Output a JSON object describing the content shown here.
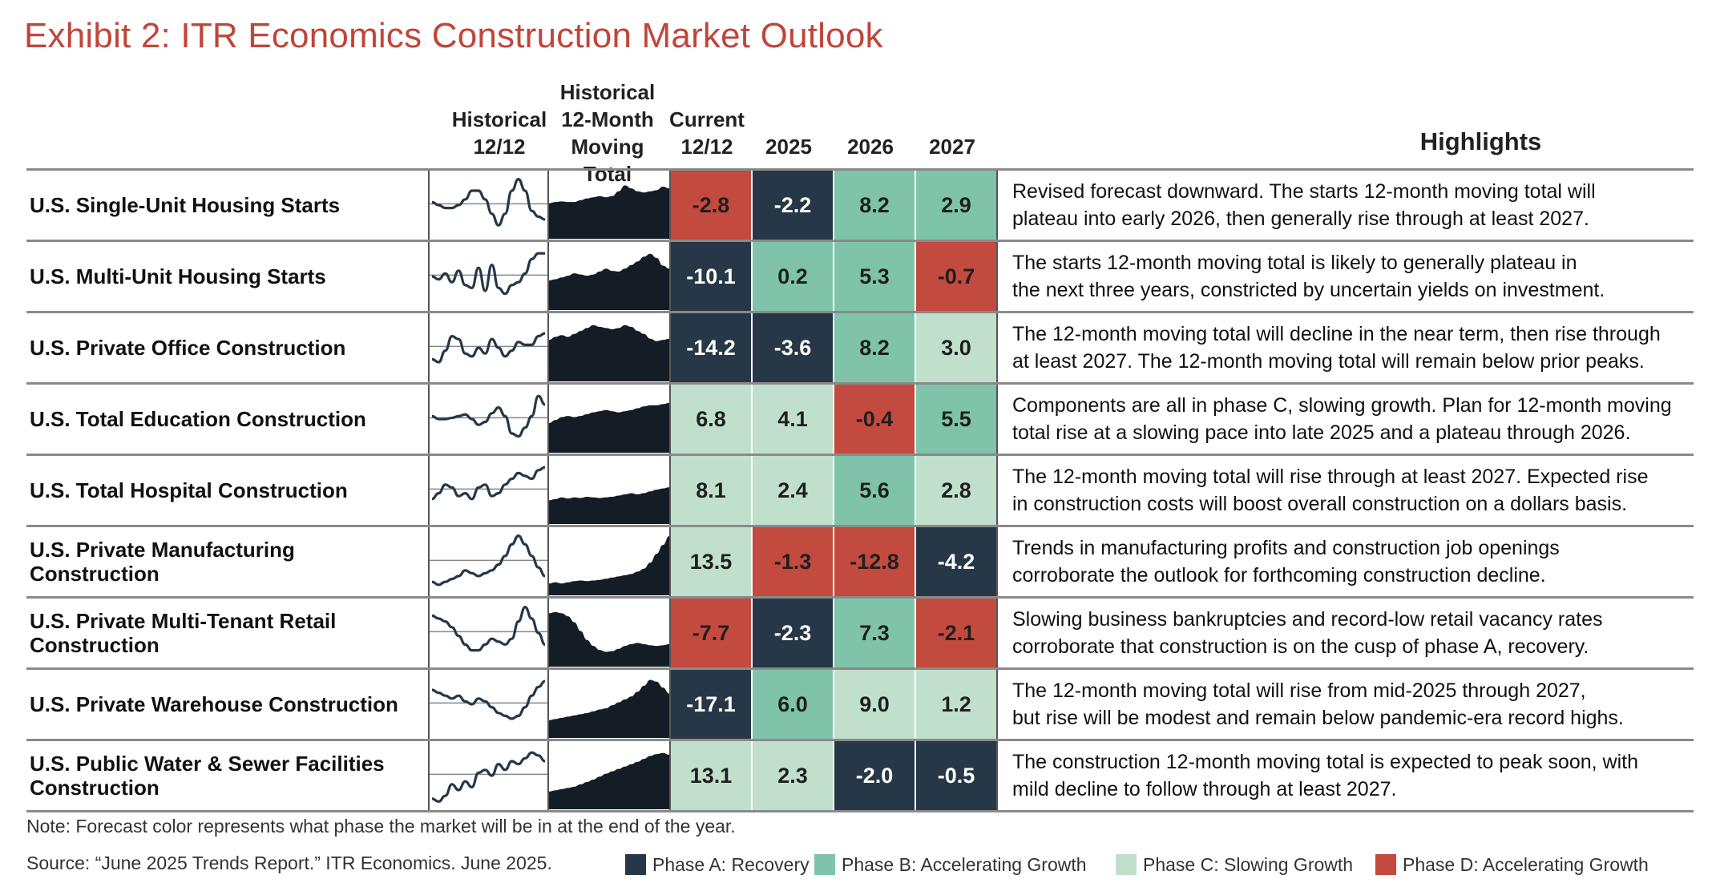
{
  "title": "Exhibit 2: ITR Economics Construction Market Outlook",
  "headers": {
    "hist_1212": [
      "Historical",
      "12/12"
    ],
    "hist_mt": [
      "Historical",
      "12-Month",
      "Moving Total"
    ],
    "current": [
      "Current",
      "12/12"
    ],
    "y2025": "2025",
    "y2026": "2026",
    "y2027": "2027",
    "highlights": "Highlights"
  },
  "phase_colors": {
    "A": "#263847",
    "B": "#7ec3aa",
    "C": "#c1dfcd",
    "D": "#c34a3e"
  },
  "rows": [
    {
      "label": "U.S. Single-Unit Housing Starts",
      "cells": [
        {
          "v": "-2.8",
          "p": "D"
        },
        {
          "v": "-2.2",
          "p": "A"
        },
        {
          "v": "8.2",
          "p": "B"
        },
        {
          "v": "2.9",
          "p": "B"
        }
      ],
      "highlight": [
        "Revised forecast downward. The starts 12-month moving total will",
        "plateau into early 2026, then generally rise through at least 2027."
      ],
      "spark": [
        0.55,
        0.5,
        0.45,
        0.45,
        0.5,
        0.6,
        0.75,
        0.75,
        0.6,
        0.35,
        0.15,
        0.35,
        0.75,
        0.95,
        0.75,
        0.4,
        0.3,
        0.25
      ],
      "mt": [
        0.6,
        0.62,
        0.63,
        0.62,
        0.62,
        0.65,
        0.68,
        0.7,
        0.72,
        0.7,
        0.72,
        0.8,
        0.9,
        0.85,
        0.8,
        0.78,
        0.8,
        0.82,
        0.88,
        0.85
      ]
    },
    {
      "label": "U.S. Multi-Unit Housing Starts",
      "cells": [
        {
          "v": "-10.1",
          "p": "A"
        },
        {
          "v": "0.2",
          "p": "B"
        },
        {
          "v": "5.3",
          "p": "B"
        },
        {
          "v": "-0.7",
          "p": "D"
        }
      ],
      "highlight": [
        "The starts 12-month moving total is likely to generally plateau in",
        "the next three years, constricted by uncertain yields on investment."
      ],
      "spark": [
        0.5,
        0.45,
        0.55,
        0.4,
        0.6,
        0.35,
        0.3,
        0.65,
        0.25,
        0.7,
        0.3,
        0.2,
        0.35,
        0.4,
        0.55,
        0.8,
        0.9,
        0.9
      ],
      "mt": [
        0.5,
        0.52,
        0.55,
        0.58,
        0.62,
        0.6,
        0.58,
        0.6,
        0.65,
        0.7,
        0.66,
        0.65,
        0.7,
        0.76,
        0.82,
        0.9,
        0.95,
        0.88,
        0.75,
        0.7
      ]
    },
    {
      "label": "U.S. Private Office Construction",
      "cells": [
        {
          "v": "-14.2",
          "p": "A"
        },
        {
          "v": "-3.6",
          "p": "A"
        },
        {
          "v": "8.2",
          "p": "B"
        },
        {
          "v": "3.0",
          "p": "C"
        }
      ],
      "highlight": [
        "The 12-month moving total will decline in the near term, then rise through",
        "at least 2027. The 12-month moving total will remain below prior peaks."
      ],
      "spark": [
        0.3,
        0.25,
        0.45,
        0.7,
        0.65,
        0.4,
        0.35,
        0.5,
        0.4,
        0.65,
        0.5,
        0.35,
        0.45,
        0.6,
        0.55,
        0.55,
        0.7,
        0.75
      ],
      "mt": [
        0.7,
        0.75,
        0.78,
        0.75,
        0.8,
        0.85,
        0.9,
        0.95,
        0.92,
        0.9,
        0.88,
        0.9,
        0.95,
        0.92,
        0.85,
        0.8,
        0.72,
        0.68,
        0.7,
        0.72
      ]
    },
    {
      "label": "U.S. Total Education Construction",
      "cells": [
        {
          "v": "6.8",
          "p": "C"
        },
        {
          "v": "4.1",
          "p": "C"
        },
        {
          "v": "-0.4",
          "p": "D"
        },
        {
          "v": "5.5",
          "p": "B"
        }
      ],
      "highlight": [
        "Components are all in phase C, slowing growth. Plan for 12-month moving",
        "total rise at a slowing pace into late 2025 and a plateau through 2026."
      ],
      "spark": [
        0.55,
        0.5,
        0.5,
        0.52,
        0.55,
        0.58,
        0.5,
        0.4,
        0.45,
        0.6,
        0.7,
        0.55,
        0.25,
        0.2,
        0.35,
        0.55,
        0.9,
        0.75
      ],
      "mt": [
        0.5,
        0.55,
        0.6,
        0.62,
        0.6,
        0.62,
        0.65,
        0.68,
        0.7,
        0.72,
        0.7,
        0.68,
        0.7,
        0.72,
        0.75,
        0.78,
        0.8,
        0.8,
        0.82,
        0.84
      ]
    },
    {
      "label": "U.S. Total Hospital Construction",
      "cells": [
        {
          "v": "8.1",
          "p": "C"
        },
        {
          "v": "2.4",
          "p": "C"
        },
        {
          "v": "5.6",
          "p": "B"
        },
        {
          "v": "2.8",
          "p": "C"
        }
      ],
      "highlight": [
        "The 12-month moving total will rise through at least 2027. Expected rise",
        "in construction costs will boost overall construction on a dollars basis."
      ],
      "spark": [
        0.35,
        0.45,
        0.6,
        0.55,
        0.4,
        0.45,
        0.35,
        0.55,
        0.6,
        0.4,
        0.45,
        0.6,
        0.7,
        0.8,
        0.75,
        0.7,
        0.85,
        0.9
      ],
      "mt": [
        0.4,
        0.42,
        0.45,
        0.43,
        0.45,
        0.44,
        0.46,
        0.45,
        0.44,
        0.45,
        0.46,
        0.48,
        0.5,
        0.52,
        0.5,
        0.52,
        0.55,
        0.58,
        0.6,
        0.62
      ]
    },
    {
      "label": "U.S. Private Manufacturing Construction",
      "cells": [
        {
          "v": "13.5",
          "p": "C"
        },
        {
          "v": "-1.3",
          "p": "D"
        },
        {
          "v": "-12.8",
          "p": "D"
        },
        {
          "v": "-4.2",
          "p": "A"
        }
      ],
      "highlight": [
        "Trends in manufacturing profits and construction job openings",
        "corroborate the outlook for forthcoming construction decline."
      ],
      "spark": [
        0.15,
        0.1,
        0.15,
        0.2,
        0.25,
        0.35,
        0.3,
        0.25,
        0.3,
        0.35,
        0.45,
        0.6,
        0.8,
        0.95,
        0.8,
        0.6,
        0.4,
        0.25
      ],
      "mt": [
        0.2,
        0.22,
        0.2,
        0.22,
        0.24,
        0.25,
        0.24,
        0.25,
        0.26,
        0.28,
        0.3,
        0.32,
        0.34,
        0.36,
        0.4,
        0.45,
        0.55,
        0.7,
        0.85,
        1.0
      ]
    },
    {
      "label": "U.S. Private Multi-Tenant Retail Construction",
      "cells": [
        {
          "v": "-7.7",
          "p": "D"
        },
        {
          "v": "-2.3",
          "p": "A"
        },
        {
          "v": "7.3",
          "p": "B"
        },
        {
          "v": "-2.1",
          "p": "D"
        }
      ],
      "highlight": [
        "Slowing business bankruptcies and record-low retail vacancy rates",
        "corroborate that construction is on the cusp of phase A, recovery."
      ],
      "spark": [
        0.8,
        0.75,
        0.7,
        0.6,
        0.45,
        0.3,
        0.2,
        0.2,
        0.3,
        0.4,
        0.35,
        0.3,
        0.4,
        0.7,
        0.95,
        0.75,
        0.5,
        0.3
      ],
      "mt": [
        0.9,
        0.92,
        0.9,
        0.85,
        0.75,
        0.6,
        0.45,
        0.35,
        0.28,
        0.25,
        0.26,
        0.3,
        0.35,
        0.38,
        0.4,
        0.38,
        0.36,
        0.35,
        0.36,
        0.38
      ]
    },
    {
      "label": "U.S. Private Warehouse Construction",
      "cells": [
        {
          "v": "-17.1",
          "p": "A"
        },
        {
          "v": "6.0",
          "p": "B"
        },
        {
          "v": "9.0",
          "p": "C"
        },
        {
          "v": "1.2",
          "p": "C"
        }
      ],
      "highlight": [
        "The 12-month moving total will rise from mid-2025 through 2027,",
        "but rise will be modest and remain below pandemic-era record highs."
      ],
      "spark": [
        0.75,
        0.7,
        0.65,
        0.6,
        0.65,
        0.55,
        0.5,
        0.6,
        0.55,
        0.45,
        0.35,
        0.3,
        0.25,
        0.3,
        0.45,
        0.65,
        0.8,
        0.9
      ],
      "mt": [
        0.3,
        0.32,
        0.34,
        0.36,
        0.38,
        0.4,
        0.42,
        0.45,
        0.48,
        0.5,
        0.55,
        0.6,
        0.65,
        0.7,
        0.78,
        0.88,
        0.98,
        0.95,
        0.85,
        0.75
      ]
    },
    {
      "label": "U.S. Public Water & Sewer Facilities Construction",
      "cells": [
        {
          "v": "13.1",
          "p": "C"
        },
        {
          "v": "2.3",
          "p": "C"
        },
        {
          "v": "-2.0",
          "p": "A"
        },
        {
          "v": "-0.5",
          "p": "A"
        }
      ],
      "highlight": [
        "The construction 12-month moving total is expected to peak soon, with",
        "mild decline to follow through at least 2027."
      ],
      "spark": [
        0.1,
        0.05,
        0.15,
        0.35,
        0.25,
        0.4,
        0.3,
        0.55,
        0.6,
        0.5,
        0.7,
        0.6,
        0.75,
        0.7,
        0.8,
        0.9,
        0.85,
        0.75
      ],
      "mt": [
        0.3,
        0.32,
        0.34,
        0.36,
        0.38,
        0.42,
        0.46,
        0.5,
        0.55,
        0.6,
        0.64,
        0.68,
        0.72,
        0.76,
        0.8,
        0.85,
        0.9,
        0.93,
        0.95,
        0.92
      ]
    }
  ],
  "note": "Note: Forecast color represents what phase the market will be in at the end of the year.",
  "source": "Source: “June 2025 Trends Report.” ITR Economics. June 2025.",
  "legend": [
    {
      "label": "Phase A: Recovery",
      "p": "A"
    },
    {
      "label": "Phase B: Accelerating Growth",
      "p": "B"
    },
    {
      "label": "Phase C: Slowing Growth",
      "p": "C"
    },
    {
      "label": "Phase D: Accelerating Growth",
      "p": "D"
    }
  ]
}
